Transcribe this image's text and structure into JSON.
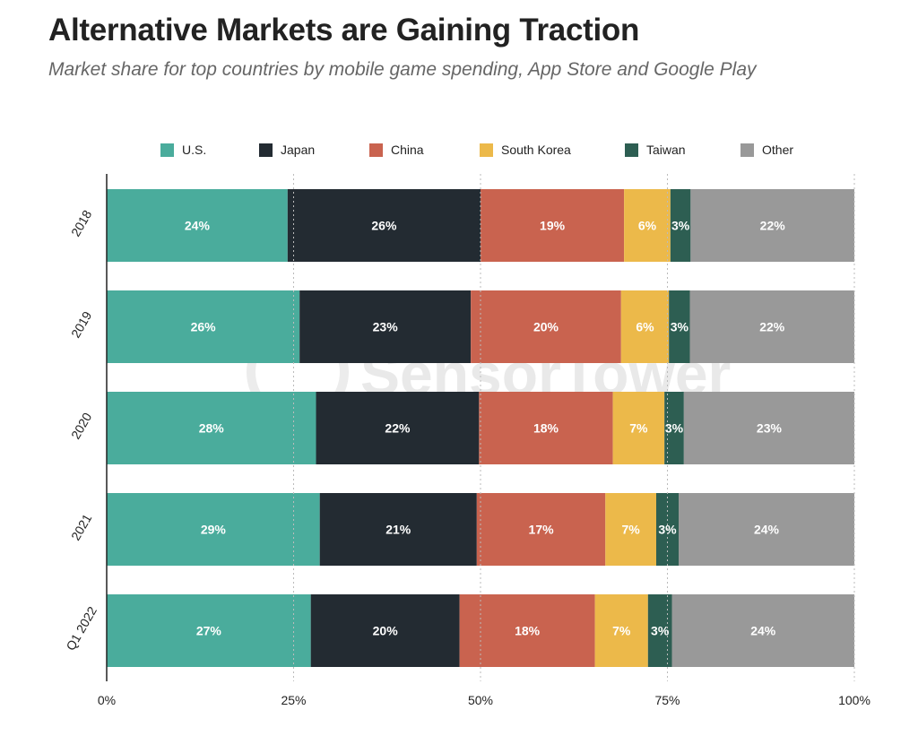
{
  "header": {
    "title": "Alternative Markets are Gaining Traction",
    "subtitle": "Market share for top countries by mobile game spending, App Store and Google Play"
  },
  "watermark": {
    "text": "SensorTower"
  },
  "chart_data": {
    "type": "bar",
    "orientation": "horizontal",
    "stacked": true,
    "title": "Alternative Markets are Gaining Traction",
    "subtitle": "Market share for top countries by mobile game spending, App Store and Google Play",
    "xlabel": "",
    "ylabel": "",
    "xlim": [
      0,
      100
    ],
    "x_ticks": [
      {
        "value": 0,
        "label": "0%"
      },
      {
        "value": 25,
        "label": "25%"
      },
      {
        "value": 50,
        "label": "50%"
      },
      {
        "value": 75,
        "label": "75%"
      },
      {
        "value": 100,
        "label": "100%"
      }
    ],
    "grid": "vertical dotted at 25% intervals",
    "legend_position": "top",
    "categories": [
      "2018",
      "2019",
      "2020",
      "2021",
      "Q1 2022"
    ],
    "series": [
      {
        "name": "U.S.",
        "color": "#4aac9c",
        "values": [
          24.2,
          25.8,
          28.0,
          28.5,
          27.3
        ],
        "labels": [
          "24%",
          "26%",
          "28%",
          "29%",
          "27%"
        ]
      },
      {
        "name": "Japan",
        "color": "#232b32",
        "values": [
          25.8,
          22.9,
          21.8,
          21.0,
          19.9
        ],
        "labels": [
          "26%",
          "23%",
          "22%",
          "21%",
          "20%"
        ]
      },
      {
        "name": "China",
        "color": "#c9634f",
        "values": [
          19.2,
          20.1,
          17.9,
          17.2,
          18.1
        ],
        "labels": [
          "19%",
          "20%",
          "18%",
          "17%",
          "18%"
        ]
      },
      {
        "name": "South Korea",
        "color": "#ecb94a",
        "values": [
          6.2,
          6.4,
          6.9,
          6.8,
          7.1
        ],
        "labels": [
          "6%",
          "6%",
          "7%",
          "7%",
          "7%"
        ]
      },
      {
        "name": "Taiwan",
        "color": "#2d5e52",
        "values": [
          2.7,
          2.8,
          2.6,
          3.0,
          3.2
        ],
        "labels": [
          "3%",
          "3%",
          "3%",
          "3%",
          "3%"
        ]
      },
      {
        "name": "Other",
        "color": "#999999",
        "values": [
          21.9,
          22.0,
          22.8,
          23.5,
          24.4
        ],
        "labels": [
          "22%",
          "22%",
          "23%",
          "24%",
          "24%"
        ]
      }
    ]
  }
}
